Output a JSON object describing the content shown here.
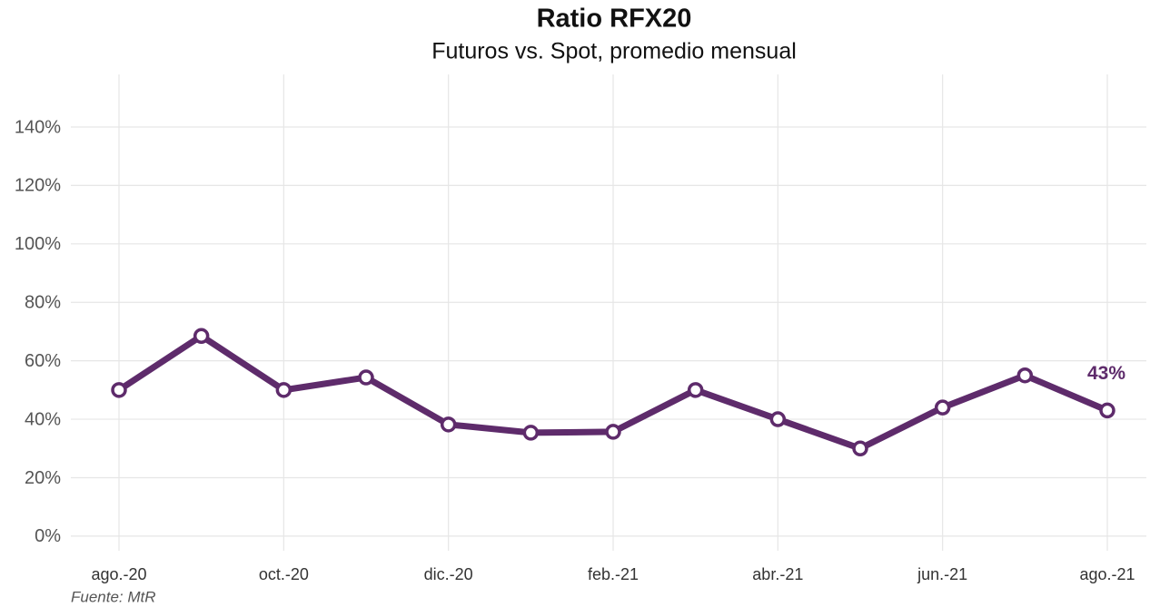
{
  "chart_data": {
    "type": "line",
    "title": "Ratio RFX20",
    "subtitle": "Futuros vs. Spot, promedio mensual",
    "source": "Fuente: MtR",
    "categories": [
      "ago.-20",
      null,
      "oct.-20",
      null,
      "dic.-20",
      null,
      "feb.-21",
      null,
      "abr.-21",
      null,
      "jun.-21",
      null,
      "ago.-21"
    ],
    "values": [
      50,
      68.5,
      50,
      54.3,
      38.2,
      35.4,
      35.7,
      50,
      40,
      30,
      44,
      55,
      43
    ],
    "value_labels": [
      null,
      null,
      null,
      null,
      null,
      null,
      null,
      null,
      null,
      null,
      null,
      null,
      "43%"
    ],
    "color": "#5e2b6b",
    "ylim": [
      -5,
      158
    ],
    "yticks": [
      {
        "value": 0,
        "label": "0%"
      },
      {
        "value": 20,
        "label": "20%"
      },
      {
        "value": 40,
        "label": "40%"
      },
      {
        "value": 60,
        "label": "60%"
      },
      {
        "value": 80,
        "label": "80%"
      },
      {
        "value": 100,
        "label": "100%"
      },
      {
        "value": 120,
        "label": "120%"
      },
      {
        "value": 140,
        "label": "140%"
      }
    ],
    "grid": true
  }
}
